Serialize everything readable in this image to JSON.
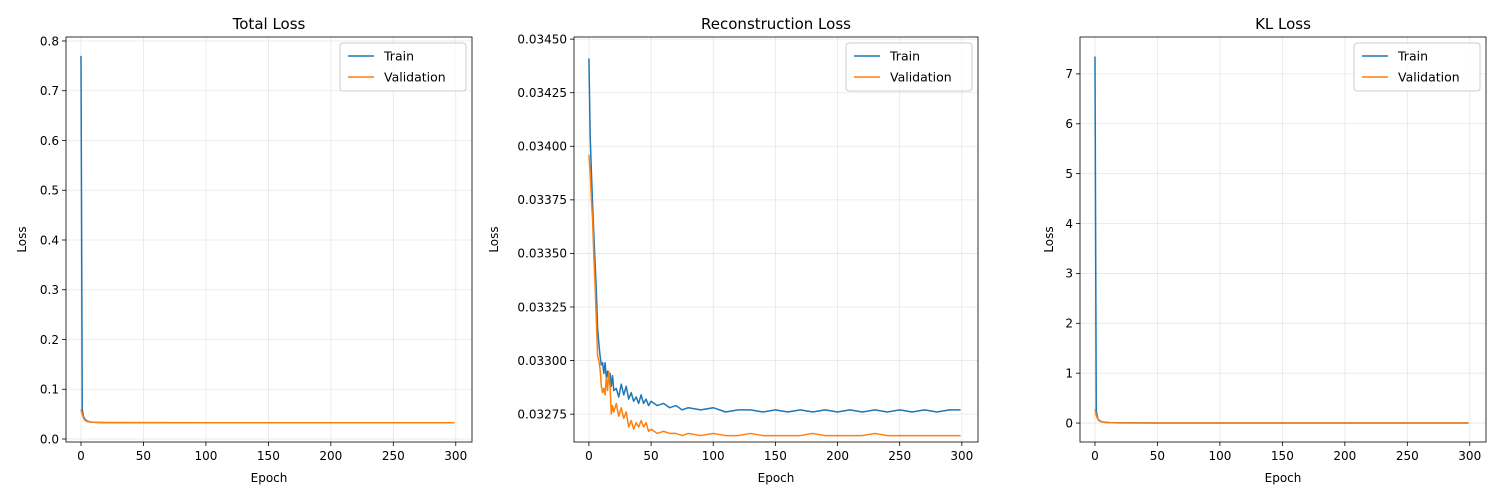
{
  "chart_data": [
    {
      "type": "line",
      "title": "Total Loss",
      "xlabel": "Epoch",
      "ylabel": "Loss",
      "xlim": [
        -12,
        313
      ],
      "ylim": [
        -0.006,
        0.808
      ],
      "xticks": [
        0,
        50,
        100,
        150,
        200,
        250,
        300
      ],
      "yticks": [
        0.0,
        0.1,
        0.2,
        0.3,
        0.4,
        0.5,
        0.6,
        0.7,
        0.8
      ],
      "ytick_labels": [
        "0.0",
        "0.1",
        "0.2",
        "0.3",
        "0.4",
        "0.5",
        "0.6",
        "0.7",
        "0.8"
      ],
      "grid": true,
      "legend_position": "upper right",
      "series": [
        {
          "name": "Train",
          "color": "#1f77b4",
          "points": [
            [
              0,
              0.77
            ],
            [
              1,
              0.06
            ],
            [
              2,
              0.045
            ],
            [
              3,
              0.04
            ],
            [
              5,
              0.036
            ],
            [
              8,
              0.034
            ],
            [
              12,
              0.0335
            ],
            [
              20,
              0.033
            ],
            [
              50,
              0.0329
            ],
            [
              100,
              0.0328
            ],
            [
              150,
              0.0328
            ],
            [
              200,
              0.0328
            ],
            [
              250,
              0.0328
            ],
            [
              299,
              0.0328
            ]
          ]
        },
        {
          "name": "Validation",
          "color": "#ff7f0e",
          "points": [
            [
              0,
              0.06
            ],
            [
              1,
              0.05
            ],
            [
              2,
              0.042
            ],
            [
              3,
              0.038
            ],
            [
              5,
              0.035
            ],
            [
              8,
              0.034
            ],
            [
              12,
              0.0334
            ],
            [
              20,
              0.033
            ],
            [
              50,
              0.0328
            ],
            [
              100,
              0.0327
            ],
            [
              150,
              0.0327
            ],
            [
              200,
              0.0327
            ],
            [
              250,
              0.0327
            ],
            [
              299,
              0.0327
            ]
          ]
        }
      ]
    },
    {
      "type": "line",
      "title": "Reconstruction Loss",
      "xlabel": "Epoch",
      "ylabel": "Loss",
      "xlim": [
        -12,
        313
      ],
      "ylim": [
        0.03262,
        0.03451
      ],
      "xticks": [
        0,
        50,
        100,
        150,
        200,
        250,
        300
      ],
      "yticks": [
        0.03275,
        0.033,
        0.03325,
        0.0335,
        0.03375,
        0.034,
        0.03425,
        0.0345
      ],
      "ytick_labels": [
        "0.03275",
        "0.03300",
        "0.03325",
        "0.03350",
        "0.03375",
        "0.03400",
        "0.03425",
        "0.03450"
      ],
      "grid": true,
      "legend_position": "upper right",
      "series": [
        {
          "name": "Train",
          "color": "#1f77b4",
          "points": [
            [
              0,
              0.03441
            ],
            [
              1,
              0.03405
            ],
            [
              2,
              0.03388
            ],
            [
              3,
              0.03372
            ],
            [
              4,
              0.03358
            ],
            [
              5,
              0.03345
            ],
            [
              6,
              0.03332
            ],
            [
              7,
              0.03315
            ],
            [
              8,
              0.03308
            ],
            [
              9,
              0.03302
            ],
            [
              10,
              0.03298
            ],
            [
              11,
              0.03299
            ],
            [
              12,
              0.03294
            ],
            [
              13,
              0.03299
            ],
            [
              14,
              0.03292
            ],
            [
              15,
              0.03295
            ],
            [
              16,
              0.0329
            ],
            [
              17,
              0.03294
            ],
            [
              18,
              0.03288
            ],
            [
              19,
              0.03293
            ],
            [
              20,
              0.03286
            ],
            [
              22,
              0.03287
            ],
            [
              24,
              0.03283
            ],
            [
              26,
              0.03289
            ],
            [
              28,
              0.03284
            ],
            [
              30,
              0.03288
            ],
            [
              32,
              0.03282
            ],
            [
              34,
              0.03285
            ],
            [
              36,
              0.03281
            ],
            [
              38,
              0.03283
            ],
            [
              40,
              0.0328
            ],
            [
              42,
              0.03284
            ],
            [
              44,
              0.0328
            ],
            [
              46,
              0.03282
            ],
            [
              48,
              0.03279
            ],
            [
              50,
              0.03281
            ],
            [
              55,
              0.03279
            ],
            [
              60,
              0.0328
            ],
            [
              65,
              0.03278
            ],
            [
              70,
              0.03279
            ],
            [
              75,
              0.03277
            ],
            [
              80,
              0.03278
            ],
            [
              90,
              0.03277
            ],
            [
              100,
              0.03278
            ],
            [
              110,
              0.03276
            ],
            [
              120,
              0.03277
            ],
            [
              130,
              0.03277
            ],
            [
              140,
              0.03276
            ],
            [
              150,
              0.03277
            ],
            [
              160,
              0.03276
            ],
            [
              170,
              0.03277
            ],
            [
              180,
              0.03276
            ],
            [
              190,
              0.03277
            ],
            [
              200,
              0.03276
            ],
            [
              210,
              0.03277
            ],
            [
              220,
              0.03276
            ],
            [
              230,
              0.03277
            ],
            [
              240,
              0.03276
            ],
            [
              250,
              0.03277
            ],
            [
              260,
              0.03276
            ],
            [
              270,
              0.03277
            ],
            [
              280,
              0.03276
            ],
            [
              290,
              0.03277
            ],
            [
              299,
              0.03277
            ]
          ]
        },
        {
          "name": "Validation",
          "color": "#ff7f0e",
          "points": [
            [
              0,
              0.03396
            ],
            [
              1,
              0.03388
            ],
            [
              2,
              0.03375
            ],
            [
              3,
              0.03365
            ],
            [
              4,
              0.03348
            ],
            [
              5,
              0.03335
            ],
            [
              6,
              0.03318
            ],
            [
              7,
              0.03302
            ],
            [
              8,
              0.033
            ],
            [
              9,
              0.03296
            ],
            [
              10,
              0.03288
            ],
            [
              11,
              0.03285
            ],
            [
              12,
              0.03287
            ],
            [
              13,
              0.03284
            ],
            [
              14,
              0.03292
            ],
            [
              15,
              0.03286
            ],
            [
              16,
              0.03295
            ],
            [
              17,
              0.03288
            ],
            [
              18,
              0.03275
            ],
            [
              19,
              0.03279
            ],
            [
              20,
              0.03276
            ],
            [
              22,
              0.0328
            ],
            [
              24,
              0.03274
            ],
            [
              26,
              0.03278
            ],
            [
              28,
              0.03273
            ],
            [
              30,
              0.03276
            ],
            [
              32,
              0.03269
            ],
            [
              34,
              0.03272
            ],
            [
              36,
              0.03268
            ],
            [
              38,
              0.03271
            ],
            [
              40,
              0.03269
            ],
            [
              42,
              0.03272
            ],
            [
              44,
              0.03269
            ],
            [
              46,
              0.03271
            ],
            [
              48,
              0.03267
            ],
            [
              50,
              0.03268
            ],
            [
              55,
              0.03266
            ],
            [
              60,
              0.03267
            ],
            [
              65,
              0.03266
            ],
            [
              70,
              0.03266
            ],
            [
              75,
              0.03265
            ],
            [
              80,
              0.03266
            ],
            [
              90,
              0.03265
            ],
            [
              100,
              0.03266
            ],
            [
              110,
              0.03265
            ],
            [
              120,
              0.03265
            ],
            [
              130,
              0.03266
            ],
            [
              140,
              0.03265
            ],
            [
              150,
              0.03265
            ],
            [
              160,
              0.03265
            ],
            [
              170,
              0.03265
            ],
            [
              180,
              0.03266
            ],
            [
              190,
              0.03265
            ],
            [
              200,
              0.03265
            ],
            [
              210,
              0.03265
            ],
            [
              220,
              0.03265
            ],
            [
              230,
              0.03266
            ],
            [
              240,
              0.03265
            ],
            [
              250,
              0.03265
            ],
            [
              260,
              0.03265
            ],
            [
              270,
              0.03265
            ],
            [
              280,
              0.03265
            ],
            [
              290,
              0.03265
            ],
            [
              299,
              0.03265
            ]
          ]
        }
      ]
    },
    {
      "type": "line",
      "title": "KL Loss",
      "xlabel": "Epoch",
      "ylabel": "Loss",
      "xlim": [
        -12,
        313
      ],
      "ylim": [
        -0.38,
        7.74
      ],
      "xticks": [
        0,
        50,
        100,
        150,
        200,
        250,
        300
      ],
      "yticks": [
        0,
        1,
        2,
        3,
        4,
        5,
        6,
        7
      ],
      "ytick_labels": [
        "0",
        "1",
        "2",
        "3",
        "4",
        "5",
        "6",
        "7"
      ],
      "grid": true,
      "legend_position": "upper right",
      "series": [
        {
          "name": "Train",
          "color": "#1f77b4",
          "points": [
            [
              0,
              7.35
            ],
            [
              1,
              0.25
            ],
            [
              2,
              0.11
            ],
            [
              3,
              0.06
            ],
            [
              5,
              0.03
            ],
            [
              8,
              0.015
            ],
            [
              12,
              0.008
            ],
            [
              20,
              0.004
            ],
            [
              50,
              0.002
            ],
            [
              100,
              0.001
            ],
            [
              150,
              0.001
            ],
            [
              200,
              0.001
            ],
            [
              250,
              0.001
            ],
            [
              299,
              0.001
            ]
          ]
        },
        {
          "name": "Validation",
          "color": "#ff7f0e",
          "points": [
            [
              0,
              0.28
            ],
            [
              1,
              0.15
            ],
            [
              2,
              0.09
            ],
            [
              3,
              0.05
            ],
            [
              5,
              0.025
            ],
            [
              8,
              0.012
            ],
            [
              12,
              0.006
            ],
            [
              20,
              0.003
            ],
            [
              50,
              0.001
            ],
            [
              100,
              0.001
            ],
            [
              150,
              0.001
            ],
            [
              200,
              0.001
            ],
            [
              250,
              0.001
            ],
            [
              299,
              0.001
            ]
          ]
        }
      ]
    }
  ]
}
